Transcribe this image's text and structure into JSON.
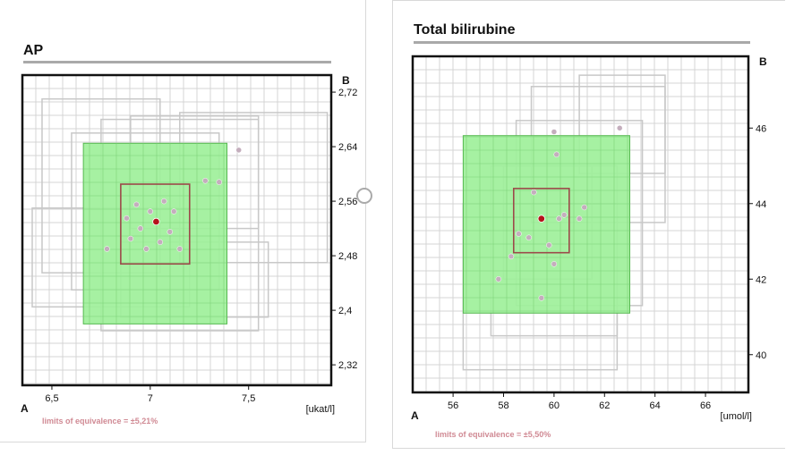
{
  "chart_data": [
    {
      "type": "scatter",
      "title": "AP",
      "unit": "[ukat/l]",
      "corner_x": "A",
      "corner_y": "B",
      "xlim": [
        6.35,
        7.92
      ],
      "ylim": [
        2.29,
        2.745
      ],
      "x_ticks": [
        {
          "value": 6.5,
          "label": "6,5"
        },
        {
          "value": 7.0,
          "label": "7"
        },
        {
          "value": 7.5,
          "label": "7,5"
        }
      ],
      "y_ticks": [
        {
          "value": 2.72,
          "label": "2,72"
        },
        {
          "value": 2.64,
          "label": "2,64"
        },
        {
          "value": 2.56,
          "label": "2,56"
        },
        {
          "value": 2.48,
          "label": "2,48"
        },
        {
          "value": 2.4,
          "label": "2,4"
        },
        {
          "value": 2.32,
          "label": "2,32"
        }
      ],
      "grid": true,
      "equivalence_region": {
        "x": [
          6.66,
          7.39
        ],
        "y": [
          2.38,
          2.645
        ]
      },
      "inner_box": {
        "x": [
          6.85,
          7.2
        ],
        "y": [
          2.468,
          2.585
        ]
      },
      "center_point": {
        "x": 7.03,
        "y": 2.53
      },
      "background_boxes": [
        {
          "x": [
            6.45,
            7.05
          ],
          "y": [
            2.455,
            2.71
          ]
        },
        {
          "x": [
            6.6,
            7.35
          ],
          "y": [
            2.43,
            2.66
          ]
        },
        {
          "x": [
            6.75,
            7.55
          ],
          "y": [
            2.37,
            2.68
          ]
        },
        {
          "x": [
            7.15,
            7.9
          ],
          "y": [
            2.47,
            2.69
          ]
        },
        {
          "x": [
            6.4,
            7.2
          ],
          "y": [
            2.405,
            2.55
          ]
        },
        {
          "x": [
            6.9,
            7.55
          ],
          "y": [
            2.52,
            2.685
          ]
        },
        {
          "x": [
            6.85,
            7.6
          ],
          "y": [
            2.39,
            2.5
          ]
        }
      ],
      "points": [
        {
          "x": 7.45,
          "y": 2.635
        },
        {
          "x": 7.28,
          "y": 2.59
        },
        {
          "x": 7.35,
          "y": 2.588
        },
        {
          "x": 7.0,
          "y": 2.545
        },
        {
          "x": 6.95,
          "y": 2.52
        },
        {
          "x": 7.1,
          "y": 2.515
        },
        {
          "x": 6.9,
          "y": 2.505
        },
        {
          "x": 7.05,
          "y": 2.5
        },
        {
          "x": 7.12,
          "y": 2.545
        },
        {
          "x": 6.98,
          "y": 2.49
        },
        {
          "x": 6.88,
          "y": 2.535
        },
        {
          "x": 6.78,
          "y": 2.49
        },
        {
          "x": 7.15,
          "y": 2.49
        },
        {
          "x": 7.07,
          "y": 2.56
        },
        {
          "x": 6.93,
          "y": 2.555
        }
      ],
      "limits_text": "limits of equivalence = ±5,21%",
      "colors": {
        "region_fill": "#9ef09a",
        "region_stroke": "#55b84f",
        "inner_box": "#9c4a4a",
        "center": "#b5121b",
        "grid": "#d4d4d4",
        "frame": "#111111",
        "bg_boxes": "#c8c8c8",
        "points": "#c4aebd"
      }
    },
    {
      "type": "scatter",
      "title": "Total bilirubine",
      "unit": "[umol/l]",
      "corner_x": "A",
      "corner_y": "B",
      "xlim": [
        54.4,
        67.7
      ],
      "ylim": [
        39.0,
        47.9
      ],
      "x_ticks": [
        {
          "value": 56,
          "label": "56"
        },
        {
          "value": 58,
          "label": "58"
        },
        {
          "value": 60,
          "label": "60"
        },
        {
          "value": 62,
          "label": "62"
        },
        {
          "value": 64,
          "label": "64"
        },
        {
          "value": 66,
          "label": "66"
        }
      ],
      "y_ticks": [
        {
          "value": 46,
          "label": "46"
        },
        {
          "value": 44,
          "label": "44"
        },
        {
          "value": 42,
          "label": "42"
        },
        {
          "value": 40,
          "label": "40"
        }
      ],
      "grid": true,
      "equivalence_region": {
        "x": [
          56.4,
          63.0
        ],
        "y": [
          41.1,
          45.8
        ]
      },
      "inner_box": {
        "x": [
          58.4,
          60.6
        ],
        "y": [
          42.7,
          44.4
        ]
      },
      "center_point": {
        "x": 59.5,
        "y": 43.6
      },
      "background_boxes": [
        {
          "x": [
            59.1,
            64.4
          ],
          "y": [
            43.5,
            47.1
          ]
        },
        {
          "x": [
            61.0,
            64.4
          ],
          "y": [
            44.8,
            47.4
          ]
        },
        {
          "x": [
            58.5,
            63.5
          ],
          "y": [
            41.3,
            46.2
          ]
        },
        {
          "x": [
            57.5,
            62.5
          ],
          "y": [
            40.5,
            45.0
          ]
        },
        {
          "x": [
            56.4,
            62.5
          ],
          "y": [
            39.6,
            44.0
          ]
        },
        {
          "x": [
            58.0,
            61.5
          ],
          "y": [
            42.0,
            45.0
          ]
        }
      ],
      "points": [
        {
          "x": 60.0,
          "y": 45.9
        },
        {
          "x": 62.6,
          "y": 46.0
        },
        {
          "x": 60.1,
          "y": 45.3
        },
        {
          "x": 59.2,
          "y": 44.3
        },
        {
          "x": 61.2,
          "y": 43.9
        },
        {
          "x": 60.2,
          "y": 43.6
        },
        {
          "x": 59.0,
          "y": 43.1
        },
        {
          "x": 58.6,
          "y": 43.2
        },
        {
          "x": 59.8,
          "y": 42.9
        },
        {
          "x": 58.3,
          "y": 42.6
        },
        {
          "x": 60.0,
          "y": 42.4
        },
        {
          "x": 57.8,
          "y": 42.0
        },
        {
          "x": 59.5,
          "y": 41.5
        },
        {
          "x": 60.4,
          "y": 43.7
        },
        {
          "x": 61.0,
          "y": 43.6
        }
      ],
      "limits_text": "limits of equivalence = ±5,50%",
      "colors": {
        "region_fill": "#9ef09a",
        "region_stroke": "#55b84f",
        "inner_box": "#9c4a4a",
        "center": "#b5121b",
        "grid": "#d4d4d4",
        "frame": "#111111",
        "bg_boxes": "#c8c8c8",
        "points": "#c4aebd"
      }
    }
  ]
}
